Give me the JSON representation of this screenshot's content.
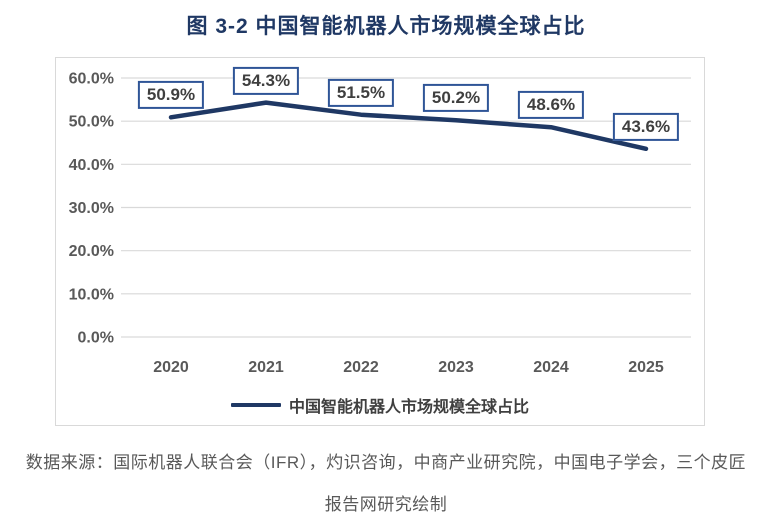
{
  "title": "图 3-2 中国智能机器人市场规模全球占比",
  "source": {
    "line1": "数据来源：国际机器人联合会（IFR），灼识咨询，中商产业研究院，中国电子学会，三个皮匠",
    "line2": "报告网研究绘制"
  },
  "colors": {
    "accent": "#1F3864",
    "label_box_border": "#2F5597",
    "grid": "#D9D9D9",
    "axis_text": "#595959",
    "label_text": "#3F3F3F"
  },
  "chart_data": {
    "type": "line",
    "title": "图 3-2 中国智能机器人市场规模全球占比",
    "categories": [
      "2020",
      "2021",
      "2022",
      "2023",
      "2024",
      "2025"
    ],
    "series": [
      {
        "name": "中国智能机器人市场规模全球占比",
        "values": [
          50.9,
          54.3,
          51.5,
          50.2,
          48.6,
          43.6
        ]
      }
    ],
    "data_labels": [
      "50.9%",
      "54.3%",
      "51.5%",
      "50.2%",
      "48.6%",
      "43.6%"
    ],
    "ytick_labels": [
      "0.0%",
      "10.0%",
      "20.0%",
      "30.0%",
      "40.0%",
      "50.0%",
      "60.0%"
    ],
    "ylim": [
      0,
      60
    ],
    "ytick_step": 10,
    "grid": true,
    "legend": "中国智能机器人市场规模全球占比",
    "legend_position": "bottom",
    "xlabel": "",
    "ylabel": ""
  }
}
